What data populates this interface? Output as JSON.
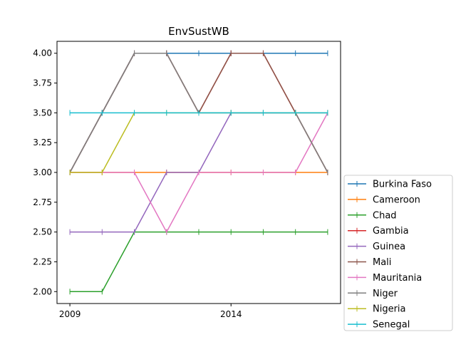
{
  "chart_data": {
    "type": "line",
    "title": "EnvSustWB",
    "xlabel": "",
    "ylabel": "",
    "x": [
      2009,
      2010,
      2011,
      2012,
      2013,
      2014,
      2015,
      2016,
      2017
    ],
    "xticks": [
      "2009",
      "2014"
    ],
    "xlim": [
      2008.6,
      2017.4
    ],
    "ylim": [
      1.9,
      4.1
    ],
    "yticks": [
      "2.00",
      "2.25",
      "2.50",
      "2.75",
      "3.00",
      "3.25",
      "3.50",
      "3.75",
      "4.00"
    ],
    "grid": false,
    "legend_position": "outside-lower-right",
    "marker": "|",
    "series": [
      {
        "name": "Burkina Faso",
        "color": "#1f77b4",
        "values": [
          3.0,
          3.5,
          4.0,
          4.0,
          4.0,
          4.0,
          4.0,
          4.0,
          4.0
        ]
      },
      {
        "name": "Cameroon",
        "color": "#ff7f0e",
        "values": [
          3.0,
          3.0,
          3.0,
          3.0,
          3.0,
          3.0,
          3.0,
          3.0,
          3.0
        ]
      },
      {
        "name": "Chad",
        "color": "#2ca02c",
        "values": [
          2.0,
          2.0,
          2.5,
          2.5,
          2.5,
          2.5,
          2.5,
          2.5,
          2.5
        ]
      },
      {
        "name": "Gambia",
        "color": "#d62728",
        "values": [
          3.0,
          3.5,
          4.0,
          4.0,
          3.5,
          4.0,
          4.0,
          3.5,
          3.0
        ]
      },
      {
        "name": "Guinea",
        "color": "#9467bd",
        "values": [
          2.5,
          2.5,
          2.5,
          3.0,
          3.0,
          3.5,
          3.5,
          3.5,
          3.5
        ]
      },
      {
        "name": "Mali",
        "color": "#8c564b",
        "values": [
          3.0,
          3.5,
          4.0,
          4.0,
          3.5,
          4.0,
          4.0,
          3.5,
          3.0
        ]
      },
      {
        "name": "Mauritania",
        "color": "#e377c2",
        "values": [
          3.0,
          3.0,
          3.0,
          2.5,
          3.0,
          3.0,
          3.0,
          3.0,
          3.5
        ]
      },
      {
        "name": "Niger",
        "color": "#7f7f7f",
        "values": [
          3.0,
          3.5,
          4.0,
          4.0,
          3.5,
          3.5,
          3.5,
          3.5,
          3.0
        ]
      },
      {
        "name": "Nigeria",
        "color": "#bcbd22",
        "values": [
          3.0,
          3.0,
          3.5,
          3.5,
          3.5,
          3.5,
          3.5,
          3.5,
          3.5
        ]
      },
      {
        "name": "Senegal",
        "color": "#17becf",
        "values": [
          3.5,
          3.5,
          3.5,
          3.5,
          3.5,
          3.5,
          3.5,
          3.5,
          3.5
        ]
      }
    ]
  }
}
